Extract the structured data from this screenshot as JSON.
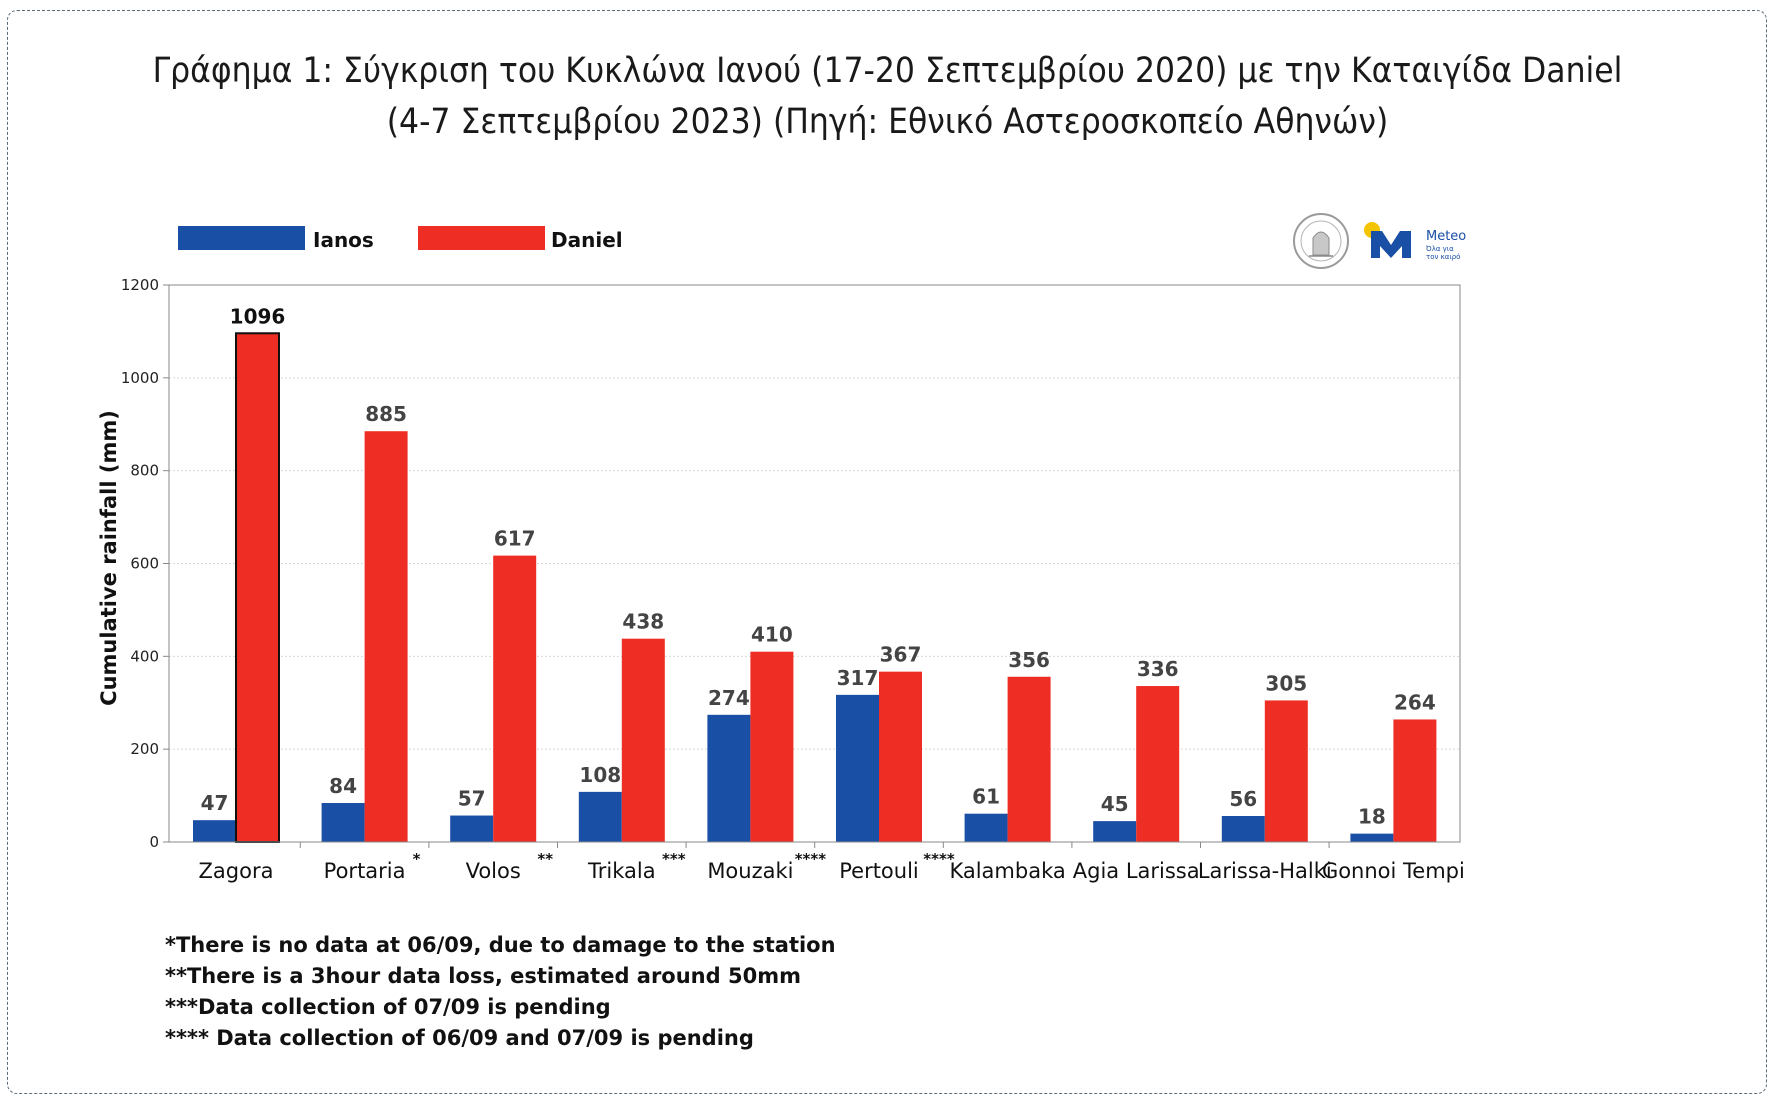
{
  "header": {
    "title_line1": "Γράφημα 1: Σύγκριση του Κυκλώνα Ιανού (17-20 Σεπτεμβρίου 2020) με την Καταιγίδα Daniel",
    "title_line2": "(4-7 Σεπτεμβρίου 2023) (Πηγή: Εθνικό Αστεροσκοπείο Αθηνών)"
  },
  "logos": {
    "seal_icon": "observatory-seal-icon",
    "meteo_text": "Meteo",
    "meteo_sub1": "Όλα για",
    "meteo_sub2": "τον καιρό"
  },
  "colors": {
    "ianos": "#1a4fa6",
    "daniel": "#ee2e24",
    "grid": "#d9d9d9",
    "axis": "#888888"
  },
  "chart_data": {
    "type": "bar",
    "ylabel": "Cumulative rainfall (mm)",
    "ylim": [
      0,
      1200
    ],
    "yticks": [
      0,
      200,
      400,
      600,
      800,
      1000,
      1200
    ],
    "legend_position": "top-left",
    "grid": true,
    "categories": [
      "Zagora",
      "Portaria",
      "Volos",
      "Trikala",
      "Mouzaki",
      "Pertouli",
      "Kalambaka",
      "Agia Larissa",
      "Larissa-Halki",
      "Gonnoi Tempi"
    ],
    "category_marks": [
      "",
      "*",
      "**",
      "***",
      "****",
      "****",
      "",
      "",
      "",
      ""
    ],
    "series": [
      {
        "name": "Ianos",
        "values": [
          47,
          84,
          57,
          108,
          274,
          317,
          61,
          45,
          56,
          18
        ]
      },
      {
        "name": "Daniel",
        "values": [
          1096,
          885,
          617,
          438,
          410,
          367,
          356,
          336,
          305,
          264
        ]
      }
    ]
  },
  "notes": [
    "*There is no data at 06/09, due to damage to the station",
    "**There is a 3hour data loss, estimated around 50mm",
    "***Data collection of 07/09 is pending",
    "**** Data collection of 06/09 and 07/09 is pending"
  ]
}
